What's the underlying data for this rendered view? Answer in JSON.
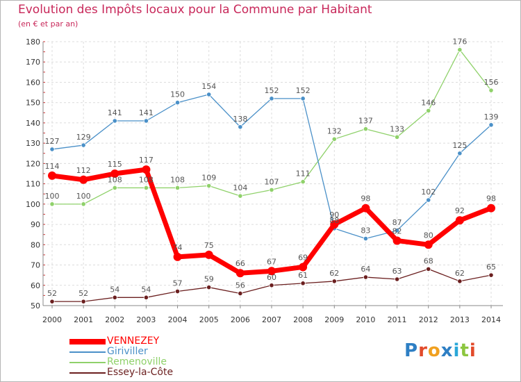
{
  "title": "Evolution des Impôts locaux pour la Commune par Habitant",
  "subtitle": "(en € et par an)",
  "logo": {
    "letters": [
      "P",
      "r",
      "o",
      "x",
      "i",
      "t",
      "i"
    ],
    "colors": [
      "#2e7fc4",
      "#e24b2b",
      "#f0a020",
      "#2e7fc4",
      "#2aa7d8",
      "#8cc63f",
      "#e24b2b"
    ]
  },
  "chart_data": {
    "type": "line",
    "x": [
      2000,
      2001,
      2002,
      2003,
      2004,
      2005,
      2006,
      2007,
      2008,
      2009,
      2010,
      2011,
      2012,
      2013,
      2014
    ],
    "ylim": [
      50,
      180
    ],
    "yticks": [
      50,
      60,
      70,
      80,
      90,
      100,
      110,
      120,
      130,
      140,
      150,
      160,
      170,
      180
    ],
    "grid": true,
    "legend_position": "bottom-left",
    "series": [
      {
        "name": "VENNEZEY",
        "color": "#ff0000",
        "values": [
          114,
          112,
          115,
          117,
          74,
          75,
          66,
          67,
          69,
          90,
          98,
          82,
          80,
          92,
          98
        ]
      },
      {
        "name": "Giriviller",
        "color": "#4a90c8",
        "values": [
          127,
          129,
          141,
          141,
          150,
          154,
          138,
          152,
          152,
          88,
          83,
          87,
          102,
          125,
          139
        ]
      },
      {
        "name": "Remenoville",
        "color": "#8fd16a",
        "values": [
          100,
          100,
          108,
          108,
          108,
          109,
          104,
          107,
          111,
          132,
          137,
          133,
          146,
          176,
          156
        ]
      },
      {
        "name": "Essey-la-Côte",
        "color": "#6b1f1f",
        "values": [
          52,
          52,
          54,
          54,
          57,
          59,
          56,
          60,
          61,
          62,
          64,
          63,
          68,
          62,
          65
        ]
      }
    ]
  }
}
